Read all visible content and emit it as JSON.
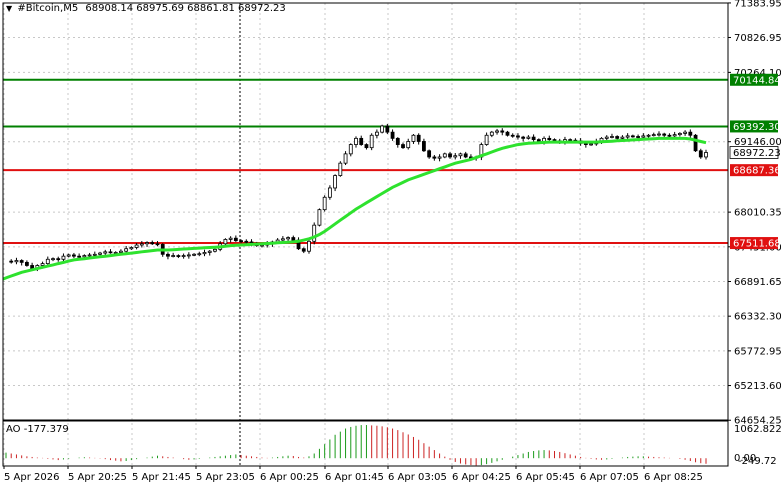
{
  "header": {
    "symbol": "#Bitcoin,M5",
    "ohlc": "68908.14 68975.69 68861.81 68972.23",
    "menu_icon": "triangle-down-icon"
  },
  "oscillator": {
    "title": "AO -177.379",
    "axis_labels": [
      "1062.822",
      "0.00",
      "-249.72"
    ]
  },
  "colors": {
    "background": "#ffffff",
    "grid": "#c8c8c8",
    "candle": "#000000",
    "moving_average": "#2ee22e",
    "resistance_line": "#008000",
    "support_line": "#e01010",
    "ao_up": "#1a9a1a",
    "ao_down": "#cc2222"
  },
  "chart_data": {
    "type": "candlestick",
    "symbol": "#Bitcoin",
    "timeframe": "M5",
    "ylim": [
      64658,
      71383
    ],
    "y_ticks": [
      71383.95,
      70826.95,
      70264.1,
      69146.0,
      68010.35,
      67451.0,
      66891.65,
      66332.3,
      65772.95,
      65213.6,
      64654.25
    ],
    "x_tick_labels": [
      "5 Apr 2026",
      "5 Apr 20:25",
      "5 Apr 21:45",
      "5 Apr 23:05",
      "6 Apr 00:25",
      "6 Apr 01:45",
      "6 Apr 03:05",
      "6 Apr 04:25",
      "6 Apr 05:45",
      "6 Apr 07:05",
      "6 Apr 08:25"
    ],
    "horizontal_levels": [
      {
        "value": 70144.84,
        "label": "70144.84",
        "color": "#008000",
        "role": "resistance"
      },
      {
        "value": 69392.3,
        "label": "69392.30",
        "color": "#008000",
        "role": "resistance"
      },
      {
        "value": 68687.36,
        "label": "68687.36",
        "color": "#e01010",
        "role": "support"
      },
      {
        "value": 67511.68,
        "label": "67511.68",
        "color": "#e01010",
        "role": "support"
      }
    ],
    "current_price": {
      "value": 68972.23,
      "label": "68972.23"
    },
    "price_series": [
      67220,
      67210,
      67230,
      67200,
      67150,
      67100,
      67150,
      67180,
      67250,
      67260,
      67250,
      67300,
      67320,
      67300,
      67290,
      67310,
      67320,
      67330,
      67350,
      67370,
      67360,
      67360,
      67380,
      67420,
      67440,
      67480,
      67500,
      67520,
      67500,
      67490,
      67330,
      67300,
      67310,
      67300,
      67310,
      67320,
      67330,
      67340,
      67360,
      67380,
      67410,
      67500,
      67570,
      67590,
      67550,
      67540,
      67530,
      67510,
      67470,
      67480,
      67500,
      67530,
      67560,
      67580,
      67600,
      67560,
      67420,
      67380,
      67540,
      67800,
      68050,
      68250,
      68400,
      68600,
      68800,
      68950,
      69100,
      69200,
      69100,
      69050,
      69250,
      69300,
      69400,
      69300,
      69200,
      69100,
      69050,
      69150,
      69250,
      69150,
      69000,
      68900,
      68880,
      68900,
      68950,
      68900,
      68920,
      68950,
      68900,
      68880,
      68900,
      69100,
      69250,
      69300,
      69320,
      69300,
      69250,
      69240,
      69220,
      69200,
      69220,
      69180,
      69150,
      69200,
      69180,
      69160,
      69150,
      69180,
      69170,
      69160,
      69120,
      69100,
      69110,
      69150,
      69200,
      69220,
      69230,
      69200,
      69220,
      69240,
      69230,
      69220,
      69240,
      69250,
      69260,
      69270,
      69250,
      69240,
      69260,
      69280,
      69300,
      69250,
      69000,
      68900,
      68972
    ],
    "ma_series": [
      66950,
      66980,
      67010,
      67040,
      67060,
      67080,
      67100,
      67120,
      67140,
      67160,
      67180,
      67200,
      67220,
      67240,
      67250,
      67260,
      67270,
      67280,
      67290,
      67300,
      67310,
      67320,
      67330,
      67340,
      67350,
      67360,
      67370,
      67380,
      67390,
      67400,
      67400,
      67400,
      67405,
      67410,
      67415,
      67420,
      67425,
      67430,
      67435,
      67440,
      67445,
      67450,
      67460,
      67470,
      67475,
      67480,
      67485,
      67490,
      67495,
      67500,
      67505,
      67510,
      67515,
      67520,
      67525,
      67530,
      67540,
      67560,
      67580,
      67610,
      67650,
      67700,
      67760,
      67820,
      67880,
      67940,
      68000,
      68060,
      68110,
      68160,
      68210,
      68260,
      68310,
      68360,
      68410,
      68450,
      68490,
      68530,
      68560,
      68590,
      68620,
      68650,
      68680,
      68710,
      68740,
      68770,
      68800,
      68820,
      68840,
      68860,
      68890,
      68920,
      68950,
      68980,
      69010,
      69040,
      69060,
      69080,
      69100,
      69110,
      69120,
      69125,
      69130,
      69135,
      69140,
      69140,
      69140,
      69140,
      69140,
      69140,
      69140,
      69140,
      69140,
      69140,
      69145,
      69150,
      69155,
      69160,
      69165,
      69170,
      69175,
      69180,
      69185,
      69190,
      69195,
      69200,
      69200,
      69200,
      69200,
      69200,
      69200,
      69190,
      69170,
      69150,
      69130
    ],
    "ao_series": [
      180,
      150,
      120,
      90,
      60,
      40,
      20,
      10,
      -20,
      -40,
      -60,
      -40,
      -20,
      0,
      20,
      30,
      20,
      10,
      -10,
      -30,
      -60,
      -80,
      -100,
      -90,
      -60,
      -30,
      0,
      20,
      50,
      80,
      60,
      40,
      20,
      0,
      -30,
      -50,
      -40,
      -20,
      0,
      20,
      40,
      60,
      80,
      100,
      120,
      100,
      80,
      60,
      40,
      20,
      10,
      20,
      40,
      60,
      80,
      70,
      40,
      20,
      60,
      150,
      300,
      450,
      600,
      750,
      850,
      950,
      1000,
      1040,
      1060,
      1062,
      1050,
      1040,
      1020,
      990,
      950,
      900,
      830,
      760,
      680,
      590,
      480,
      370,
      260,
      150,
      50,
      -50,
      -120,
      -170,
      -200,
      -220,
      -230,
      -220,
      -190,
      -150,
      -100,
      -50,
      0,
      50,
      100,
      150,
      200,
      230,
      250,
      260,
      250,
      230,
      200,
      160,
      120,
      80,
      40,
      10,
      -20,
      -40,
      -50,
      -40,
      -20,
      0,
      20,
      40,
      50,
      60,
      60,
      50,
      40,
      30,
      20,
      10,
      0,
      -20,
      -50,
      -90,
      -130,
      -160,
      -177
    ]
  }
}
